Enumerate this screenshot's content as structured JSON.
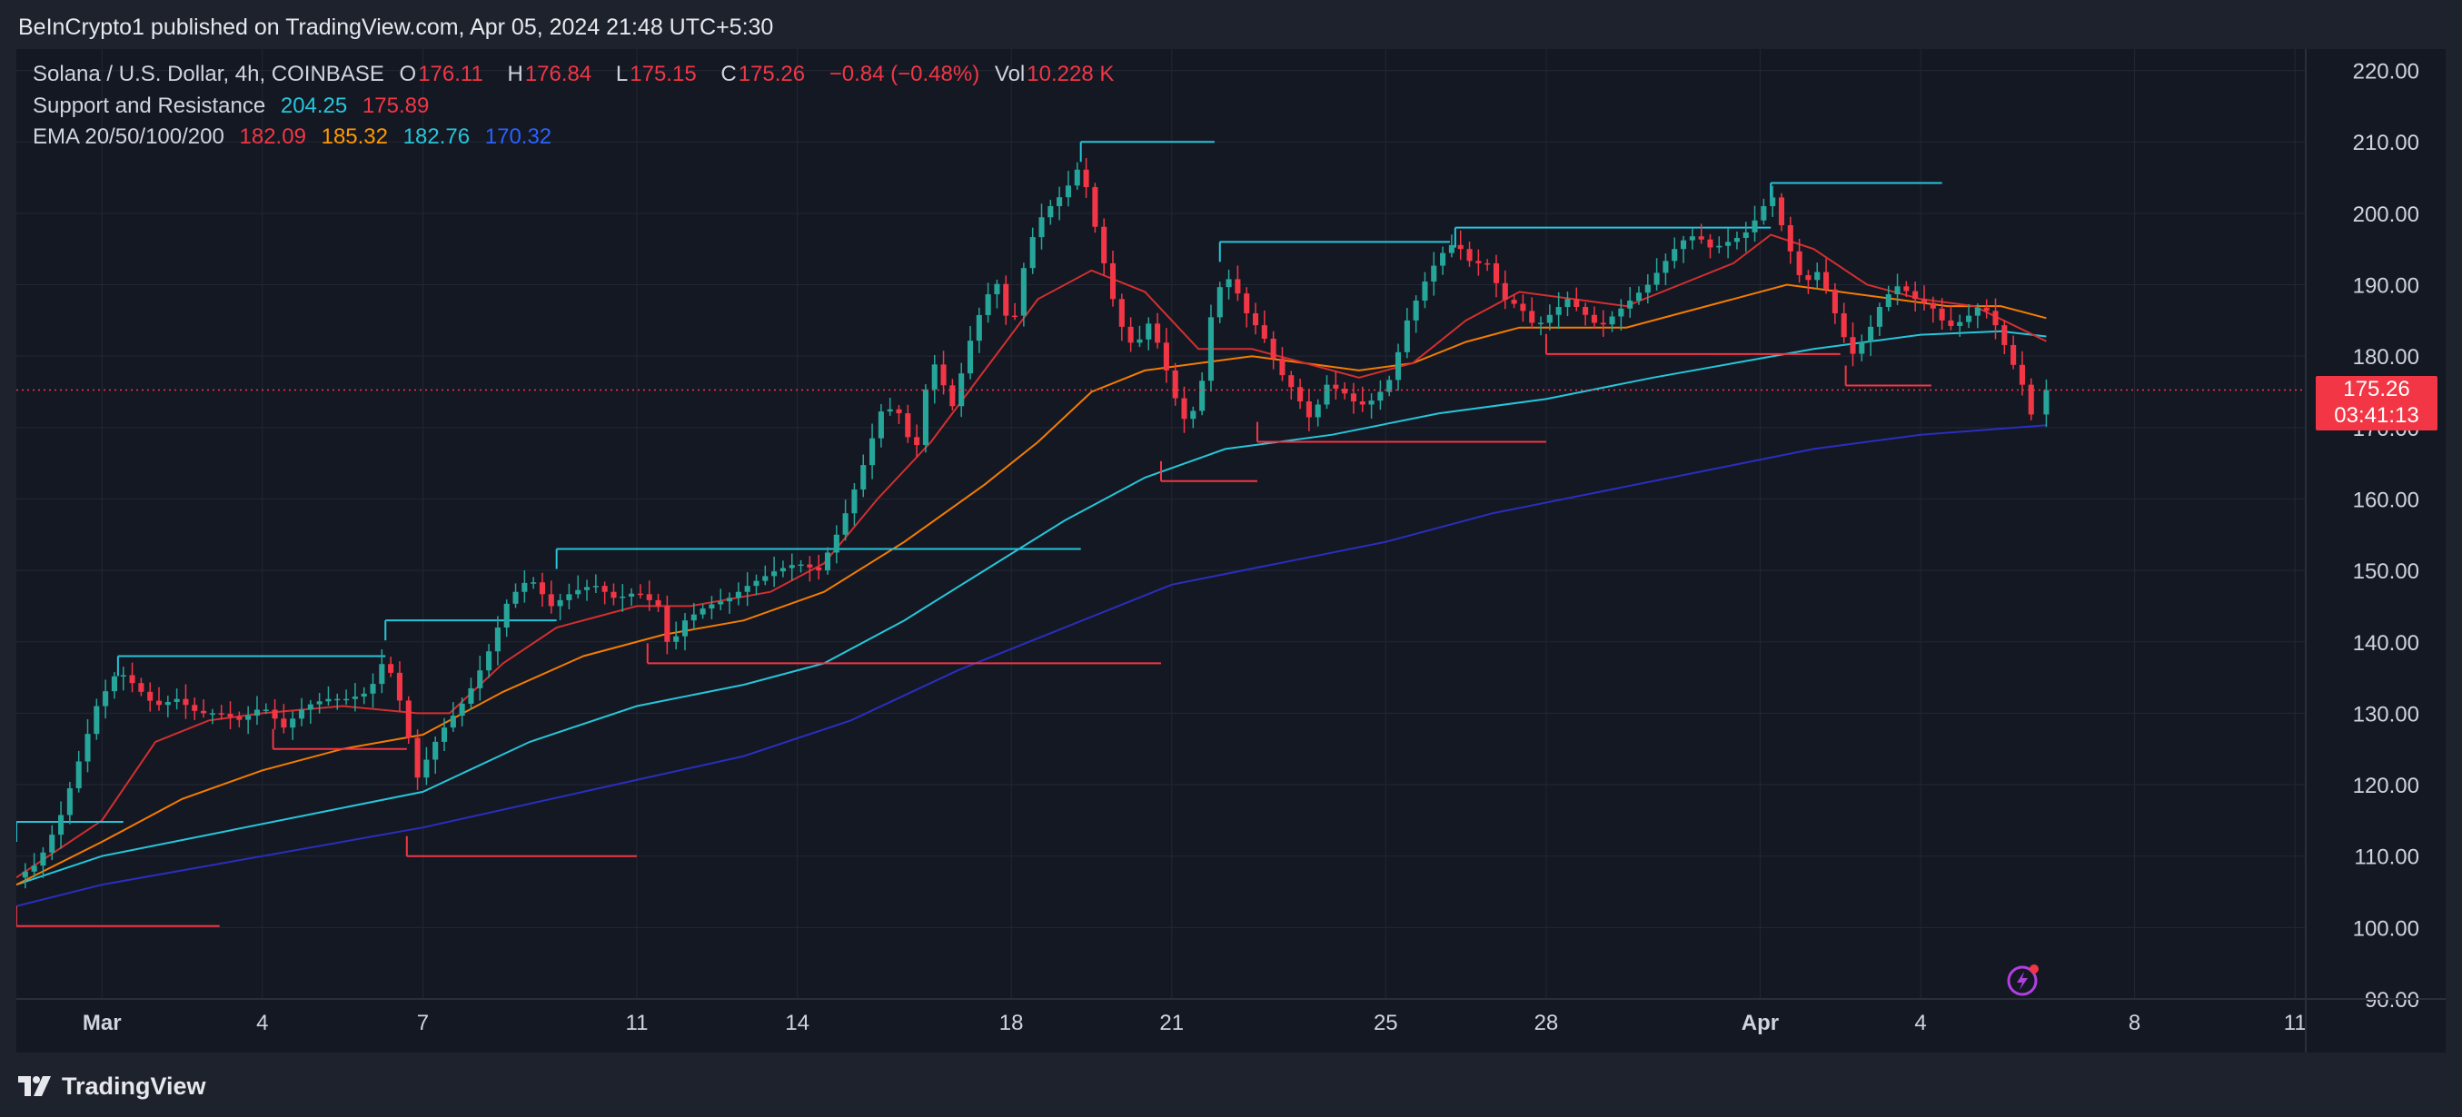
{
  "header": {
    "published": "BeInCrypto1 published on TradingView.com, Apr 05, 2024 21:48 UTC+5:30"
  },
  "legend": {
    "symbol": "Solana / U.S. Dollar, 4h, COINBASE",
    "o_label": "O",
    "o": "176.11",
    "h_label": "H",
    "h": "176.84",
    "l_label": "L",
    "l": "175.15",
    "c_label": "C",
    "c": "175.26",
    "change": "−0.84 (−0.48%)",
    "vol_label": "Vol",
    "vol": "10.228 K",
    "sr_label": "Support and Resistance",
    "sr_res": "204.25",
    "sr_sup": "175.89",
    "ema_label": "EMA 20/50/100/200",
    "ema20": "182.09",
    "ema50": "185.32",
    "ema100": "182.76",
    "ema200": "170.32"
  },
  "price_tag": {
    "price": "175.26",
    "countdown": "03:41:13"
  },
  "footer": {
    "brand": "TradingView"
  },
  "colors": {
    "up": "#26a69a",
    "down": "#f23645",
    "ema20": "#d32f2f",
    "ema50": "#f57c00",
    "ema100": "#26c6da",
    "ema200": "#2a2ebf",
    "resistance": "#26c6da",
    "support": "#f23645"
  },
  "chart_data": {
    "type": "line",
    "title": "Solana / U.S. Dollar, 4h, COINBASE",
    "x_unit": "day offset from Mar 1, 2024",
    "y_ticks": [
      90,
      100,
      110,
      120,
      130,
      140,
      150,
      160,
      170,
      180,
      190,
      200,
      210,
      220
    ],
    "ylim": [
      90,
      223
    ],
    "xlim": [
      -1.6,
      41.2
    ],
    "x_ticks": [
      {
        "x": 0,
        "label": "Mar"
      },
      {
        "x": 3,
        "label": "4"
      },
      {
        "x": 6,
        "label": "7"
      },
      {
        "x": 10,
        "label": "11"
      },
      {
        "x": 13,
        "label": "14"
      },
      {
        "x": 17,
        "label": "18"
      },
      {
        "x": 20,
        "label": "21"
      },
      {
        "x": 24,
        "label": "25"
      },
      {
        "x": 27,
        "label": "28"
      },
      {
        "x": 31,
        "label": "Apr"
      },
      {
        "x": 34,
        "label": "4"
      },
      {
        "x": 38,
        "label": "8"
      },
      {
        "x": 41,
        "label": "11"
      }
    ],
    "last_price": 175.26,
    "price_path": [
      [
        -1.6,
        107
      ],
      [
        -1.2,
        109
      ],
      [
        -0.8,
        115
      ],
      [
        -0.4,
        124
      ],
      [
        -0.1,
        131
      ],
      [
        0.3,
        136
      ],
      [
        0.6,
        134
      ],
      [
        1.0,
        131
      ],
      [
        1.4,
        132
      ],
      [
        1.8,
        130
      ],
      [
        2.2,
        130
      ],
      [
        2.6,
        129
      ],
      [
        3.0,
        131
      ],
      [
        3.4,
        128
      ],
      [
        3.8,
        131
      ],
      [
        4.2,
        132
      ],
      [
        4.6,
        132
      ],
      [
        5.0,
        133
      ],
      [
        5.3,
        138
      ],
      [
        5.6,
        131
      ],
      [
        5.9,
        121
      ],
      [
        6.3,
        127
      ],
      [
        6.8,
        132
      ],
      [
        7.2,
        138
      ],
      [
        7.6,
        146
      ],
      [
        8.0,
        149
      ],
      [
        8.4,
        145
      ],
      [
        8.8,
        147
      ],
      [
        9.2,
        148
      ],
      [
        9.6,
        146
      ],
      [
        10.0,
        147
      ],
      [
        10.4,
        145
      ],
      [
        10.6,
        139
      ],
      [
        10.9,
        143
      ],
      [
        11.3,
        145
      ],
      [
        11.7,
        146
      ],
      [
        12.1,
        148
      ],
      [
        12.6,
        150
      ],
      [
        13.0,
        151
      ],
      [
        13.4,
        150
      ],
      [
        13.8,
        156
      ],
      [
        14.2,
        164
      ],
      [
        14.6,
        173
      ],
      [
        14.9,
        172
      ],
      [
        15.2,
        166
      ],
      [
        15.5,
        180
      ],
      [
        15.9,
        173
      ],
      [
        16.3,
        184
      ],
      [
        16.7,
        191
      ],
      [
        17.0,
        183
      ],
      [
        17.3,
        195
      ],
      [
        17.6,
        200
      ],
      [
        18.0,
        203
      ],
      [
        18.3,
        207
      ],
      [
        18.6,
        197
      ],
      [
        19.0,
        185
      ],
      [
        19.3,
        181
      ],
      [
        19.6,
        185
      ],
      [
        19.9,
        178
      ],
      [
        20.2,
        171
      ],
      [
        20.5,
        173
      ],
      [
        20.8,
        189
      ],
      [
        21.1,
        191
      ],
      [
        21.4,
        186
      ],
      [
        21.7,
        183
      ],
      [
        22.0,
        178
      ],
      [
        22.3,
        175
      ],
      [
        22.6,
        171
      ],
      [
        22.9,
        176
      ],
      [
        23.2,
        175
      ],
      [
        23.5,
        173
      ],
      [
        23.8,
        174
      ],
      [
        24.1,
        177
      ],
      [
        24.4,
        185
      ],
      [
        24.7,
        190
      ],
      [
        25.0,
        194
      ],
      [
        25.3,
        196
      ],
      [
        25.6,
        193
      ],
      [
        25.9,
        193
      ],
      [
        26.2,
        188
      ],
      [
        26.5,
        187
      ],
      [
        26.8,
        184
      ],
      [
        27.1,
        186
      ],
      [
        27.4,
        188
      ],
      [
        27.7,
        186
      ],
      [
        28.0,
        184
      ],
      [
        28.3,
        186
      ],
      [
        28.6,
        188
      ],
      [
        28.9,
        190
      ],
      [
        29.2,
        193
      ],
      [
        29.5,
        196
      ],
      [
        29.8,
        197
      ],
      [
        30.1,
        195
      ],
      [
        30.4,
        196
      ],
      [
        30.7,
        197
      ],
      [
        31.0,
        200
      ],
      [
        31.2,
        203
      ],
      [
        31.5,
        196
      ],
      [
        31.8,
        190
      ],
      [
        32.1,
        192
      ],
      [
        32.4,
        186
      ],
      [
        32.7,
        180
      ],
      [
        33.0,
        183
      ],
      [
        33.3,
        188
      ],
      [
        33.6,
        190
      ],
      [
        33.9,
        188
      ],
      [
        34.2,
        187
      ],
      [
        34.5,
        184
      ],
      [
        34.8,
        185
      ],
      [
        35.1,
        187
      ],
      [
        35.3,
        186
      ],
      [
        35.6,
        181
      ],
      [
        35.9,
        176
      ],
      [
        36.1,
        171
      ],
      [
        36.35,
        175.26
      ]
    ],
    "series": [
      {
        "name": "EMA 20",
        "color": "#d32f2f",
        "points": [
          [
            -1.6,
            107
          ],
          [
            0,
            115
          ],
          [
            1,
            126
          ],
          [
            2,
            129
          ],
          [
            3,
            130
          ],
          [
            4.5,
            131
          ],
          [
            5.9,
            130
          ],
          [
            6.5,
            130
          ],
          [
            7.5,
            137
          ],
          [
            8.5,
            142
          ],
          [
            10,
            145
          ],
          [
            11,
            145
          ],
          [
            12.5,
            147
          ],
          [
            13.5,
            151
          ],
          [
            14.5,
            160
          ],
          [
            15.5,
            168
          ],
          [
            16.5,
            178
          ],
          [
            17.5,
            188
          ],
          [
            18.5,
            192
          ],
          [
            19.5,
            189
          ],
          [
            20.5,
            181
          ],
          [
            21.5,
            181
          ],
          [
            22.5,
            179
          ],
          [
            23.5,
            177
          ],
          [
            24.5,
            179
          ],
          [
            25.5,
            185
          ],
          [
            26.5,
            189
          ],
          [
            27.5,
            188
          ],
          [
            28.5,
            187
          ],
          [
            29.5,
            190
          ],
          [
            30.5,
            193
          ],
          [
            31.2,
            197
          ],
          [
            32,
            195
          ],
          [
            33,
            190
          ],
          [
            34,
            188
          ],
          [
            35,
            187
          ],
          [
            36.35,
            182.09
          ]
        ]
      },
      {
        "name": "EMA 50",
        "color": "#f57c00",
        "points": [
          [
            -1.6,
            106
          ],
          [
            0,
            112
          ],
          [
            1.5,
            118
          ],
          [
            3,
            122
          ],
          [
            4.5,
            125
          ],
          [
            6,
            127
          ],
          [
            7.5,
            133
          ],
          [
            9,
            138
          ],
          [
            10.5,
            141
          ],
          [
            12,
            143
          ],
          [
            13.5,
            147
          ],
          [
            15,
            154
          ],
          [
            16.5,
            162
          ],
          [
            17.5,
            168
          ],
          [
            18.5,
            175
          ],
          [
            19.5,
            178
          ],
          [
            20.5,
            179
          ],
          [
            21.5,
            180
          ],
          [
            22.5,
            179
          ],
          [
            23.5,
            178
          ],
          [
            24.5,
            179
          ],
          [
            25.5,
            182
          ],
          [
            26.5,
            184
          ],
          [
            27.5,
            184
          ],
          [
            28.5,
            184
          ],
          [
            29.5,
            186
          ],
          [
            30.5,
            188
          ],
          [
            31.5,
            190
          ],
          [
            32.5,
            189
          ],
          [
            33.5,
            188
          ],
          [
            34.5,
            187
          ],
          [
            35.5,
            187
          ],
          [
            36.35,
            185.32
          ]
        ]
      },
      {
        "name": "EMA 100",
        "color": "#26c6da",
        "points": [
          [
            -1.6,
            106
          ],
          [
            0,
            110
          ],
          [
            2,
            113
          ],
          [
            4,
            116
          ],
          [
            6,
            119
          ],
          [
            8,
            126
          ],
          [
            10,
            131
          ],
          [
            12,
            134
          ],
          [
            13.5,
            137
          ],
          [
            15,
            143
          ],
          [
            16.5,
            150
          ],
          [
            18,
            157
          ],
          [
            19.5,
            163
          ],
          [
            21,
            167
          ],
          [
            23,
            169
          ],
          [
            25,
            172
          ],
          [
            27,
            174
          ],
          [
            29,
            177
          ],
          [
            30.5,
            179
          ],
          [
            32,
            181
          ],
          [
            34,
            183
          ],
          [
            35.5,
            183.5
          ],
          [
            36.35,
            182.76
          ]
        ]
      },
      {
        "name": "EMA 200",
        "color": "#2a2ebf",
        "points": [
          [
            -1.6,
            103
          ],
          [
            0,
            106
          ],
          [
            3,
            110
          ],
          [
            6,
            114
          ],
          [
            9,
            119
          ],
          [
            12,
            124
          ],
          [
            14,
            129
          ],
          [
            16,
            136
          ],
          [
            18,
            142
          ],
          [
            20,
            148
          ],
          [
            22,
            151
          ],
          [
            24,
            154
          ],
          [
            26,
            158
          ],
          [
            28,
            161
          ],
          [
            30,
            164
          ],
          [
            32,
            167
          ],
          [
            34,
            169
          ],
          [
            36.35,
            170.32
          ]
        ]
      }
    ],
    "levels": [
      {
        "type": "resistance",
        "price": 114.8,
        "x1": -1.6,
        "x2": 0.4
      },
      {
        "type": "resistance",
        "price": 138,
        "x1": 0.3,
        "x2": 5.3
      },
      {
        "type": "resistance",
        "price": 143,
        "x1": 5.3,
        "x2": 8.5
      },
      {
        "type": "resistance",
        "price": 153,
        "x1": 8.5,
        "x2": 18.3
      },
      {
        "type": "resistance",
        "price": 210,
        "x1": 18.3,
        "x2": 20.8
      },
      {
        "type": "resistance",
        "price": 196,
        "x1": 20.9,
        "x2": 25.2
      },
      {
        "type": "resistance",
        "price": 198,
        "x1": 25.3,
        "x2": 31.2
      },
      {
        "type": "resistance",
        "price": 204.25,
        "x1": 31.2,
        "x2": 34.4
      },
      {
        "type": "support",
        "price": 100.2,
        "x1": -1.6,
        "x2": 2.2
      },
      {
        "type": "support",
        "price": 125,
        "x1": 3.2,
        "x2": 5.7
      },
      {
        "type": "support",
        "price": 110,
        "x1": 5.7,
        "x2": 10.0
      },
      {
        "type": "support",
        "price": 137,
        "x1": 10.2,
        "x2": 19.8
      },
      {
        "type": "support",
        "price": 162.5,
        "x1": 19.8,
        "x2": 21.6
      },
      {
        "type": "support",
        "price": 168,
        "x1": 21.6,
        "x2": 27.0
      },
      {
        "type": "support",
        "price": 180.3,
        "x1": 27.0,
        "x2": 32.5
      },
      {
        "type": "support",
        "price": 175.89,
        "x1": 32.6,
        "x2": 34.2
      }
    ]
  }
}
